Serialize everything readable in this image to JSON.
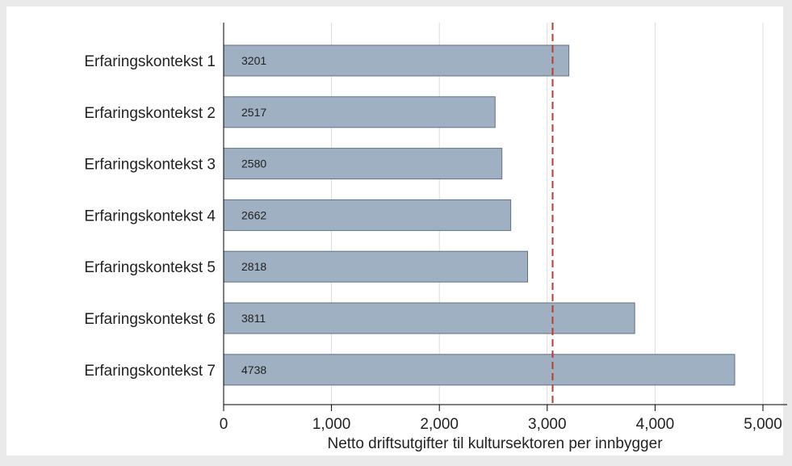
{
  "chart_data": {
    "type": "bar",
    "orientation": "horizontal",
    "categories": [
      "Erfaringskontekst 1",
      "Erfaringskontekst 2",
      "Erfaringskontekst 3",
      "Erfaringskontekst 4",
      "Erfaringskontekst 5",
      "Erfaringskontekst 6",
      "Erfaringskontekst 7"
    ],
    "values": [
      3201,
      2517,
      2580,
      2662,
      2818,
      3811,
      4738
    ],
    "data_labels": [
      "3201",
      "2517",
      "2580",
      "2662",
      "2818",
      "3811",
      "4738"
    ],
    "xlabel": "Netto driftsutgifter til kultursektoren per innbygger",
    "xlim": [
      0,
      5000
    ],
    "x_ticks": [
      0,
      1000,
      2000,
      3000,
      4000,
      5000
    ],
    "x_tick_labels": [
      "0",
      "1,000",
      "2,000",
      "3,000",
      "4,000",
      "5,000"
    ],
    "reference_line": {
      "value": 3050,
      "style": "dashed"
    },
    "grid": true,
    "legend": "none"
  },
  "colors": {
    "background": "#eaeaea",
    "plot_background": "#ffffff",
    "bar_fill": "#9fb0c3",
    "bar_stroke": "#5f7287",
    "grid": "#dcdcdc",
    "reference_line": "#c0392b",
    "text": "#222222"
  }
}
